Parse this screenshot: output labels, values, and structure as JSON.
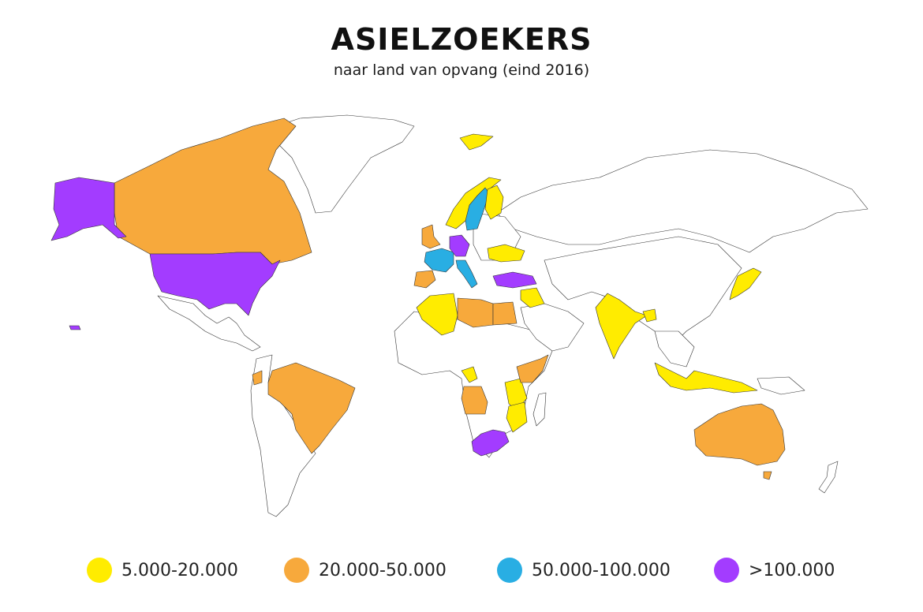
{
  "title": "ASIELZOEKERS",
  "subtitle": "naar land van opvang (eind 2016)",
  "colors": {
    "c1": "#ffec00",
    "c2": "#f7a93c",
    "c3": "#29aee3",
    "c4": "#a33cff",
    "none": "#ffffff"
  },
  "legend": [
    {
      "label": "5.000-20.000",
      "color": "#ffec00"
    },
    {
      "label": "20.000-50.000",
      "color": "#f7a93c"
    },
    {
      "label": "50.000-100.000",
      "color": "#29aee3"
    },
    {
      "label": ">100.000",
      "color": "#a33cff"
    }
  ]
}
